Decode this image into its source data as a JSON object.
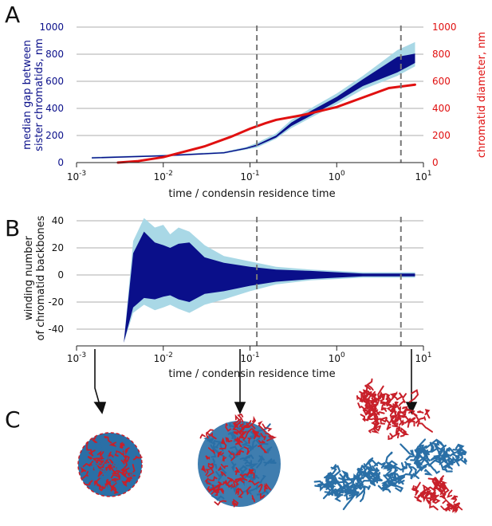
{
  "panels": {
    "a": "A",
    "b": "B",
    "c": "C"
  },
  "colors": {
    "navy": "#0a0f8a",
    "light_blue": "#a9d8e6",
    "red": "#e01010",
    "grid": "#c8c8c8",
    "dashed": "#777777"
  },
  "chart_data": [
    {
      "panel": "A",
      "type": "area",
      "xscale": "log",
      "xlim": [
        0.001,
        10
      ],
      "xticks": [
        "10^-3",
        "10^-2",
        "10^-1",
        "10^0",
        "10^1"
      ],
      "xlabel": "time / condensin residence time",
      "ylabel_left": "median gap between sister chromatids, nm",
      "ylabel_left_lines": [
        "median gap between",
        "sister chromatids, nm"
      ],
      "ylabel_right": "chromatid diameter, nm",
      "ylim_left": [
        0,
        1000
      ],
      "ylim_right": [
        0,
        1000
      ],
      "yticks_left": [
        "0",
        "200",
        "400",
        "600",
        "800",
        "1000"
      ],
      "yticks_right": [
        "0",
        "200",
        "400",
        "600",
        "800",
        "1000"
      ],
      "dashed_lines_x": [
        0.12,
        5.5
      ],
      "grid": "horizontal",
      "series": [
        {
          "name": "gap light band",
          "x": [
            0.0015,
            0.01,
            0.05,
            0.09,
            0.12,
            0.2,
            0.3,
            0.5,
            1,
            2,
            5,
            8
          ],
          "lower": [
            28,
            45,
            65,
            95,
            110,
            175,
            255,
            330,
            430,
            540,
            640,
            710
          ],
          "upper": [
            42,
            58,
            80,
            115,
            145,
            215,
            315,
            400,
            510,
            640,
            830,
            890
          ]
        },
        {
          "name": "gap dark band",
          "x": [
            0.0015,
            0.01,
            0.05,
            0.09,
            0.12,
            0.2,
            0.3,
            0.5,
            1,
            2,
            5,
            8
          ],
          "lower": [
            33,
            48,
            70,
            102,
            122,
            185,
            270,
            345,
            450,
            565,
            665,
            735
          ],
          "upper": [
            37,
            52,
            75,
            108,
            133,
            200,
            295,
            380,
            485,
            615,
            780,
            805
          ]
        },
        {
          "name": "chromatid diameter",
          "x": [
            0.003,
            0.005,
            0.01,
            0.03,
            0.06,
            0.1,
            0.15,
            0.2,
            0.4,
            1,
            2,
            4,
            8
          ],
          "y": [
            0,
            10,
            40,
            120,
            190,
            250,
            290,
            315,
            350,
            410,
            480,
            550,
            575
          ]
        }
      ]
    },
    {
      "panel": "B",
      "type": "area",
      "xscale": "log",
      "xlim": [
        0.001,
        10
      ],
      "xticks": [
        "10^-3",
        "10^-2",
        "10^-1",
        "10^0",
        "10^1"
      ],
      "xlabel": "time / condensin residence time",
      "ylabel_lines": [
        "winding number",
        "of chromatid backbones"
      ],
      "ylim": [
        -50,
        45
      ],
      "yticks": [
        "40",
        "20",
        "0",
        "-20",
        "-40"
      ],
      "dashed_lines_x": [
        0.12,
        5.5
      ],
      "grid": "horizontal",
      "series": [
        {
          "name": "winding light band",
          "x": [
            0.0035,
            0.0045,
            0.006,
            0.008,
            0.01,
            0.012,
            0.015,
            0.02,
            0.03,
            0.05,
            0.1,
            0.2,
            0.5,
            1,
            2,
            8
          ],
          "lower": [
            -50,
            -28,
            -22,
            -26,
            -24,
            -22,
            -25,
            -28,
            -22,
            -18,
            -12,
            -7,
            -4,
            -3,
            -2,
            -2
          ],
          "upper": [
            -50,
            25,
            42,
            35,
            37,
            30,
            35,
            32,
            22,
            14,
            10,
            6,
            4,
            3,
            2,
            2
          ]
        },
        {
          "name": "winding dark band",
          "x": [
            0.0035,
            0.0045,
            0.006,
            0.008,
            0.01,
            0.012,
            0.015,
            0.02,
            0.03,
            0.05,
            0.1,
            0.2,
            0.5,
            1,
            2,
            8
          ],
          "lower": [
            -50,
            -24,
            -17,
            -18,
            -16,
            -15,
            -18,
            -20,
            -14,
            -12,
            -8,
            -5,
            -3,
            -2,
            -1,
            -1
          ],
          "upper": [
            -50,
            16,
            32,
            24,
            22,
            20,
            23,
            24,
            13,
            9,
            6,
            4,
            3,
            2,
            1,
            1
          ]
        }
      ]
    }
  ],
  "snapshots": {
    "arrow_times": [
      0.0015,
      0.12,
      5.5
    ],
    "items": [
      "condensed chromatin globule",
      "partially resolved sister chromatids",
      "separated sister chromatids"
    ]
  }
}
